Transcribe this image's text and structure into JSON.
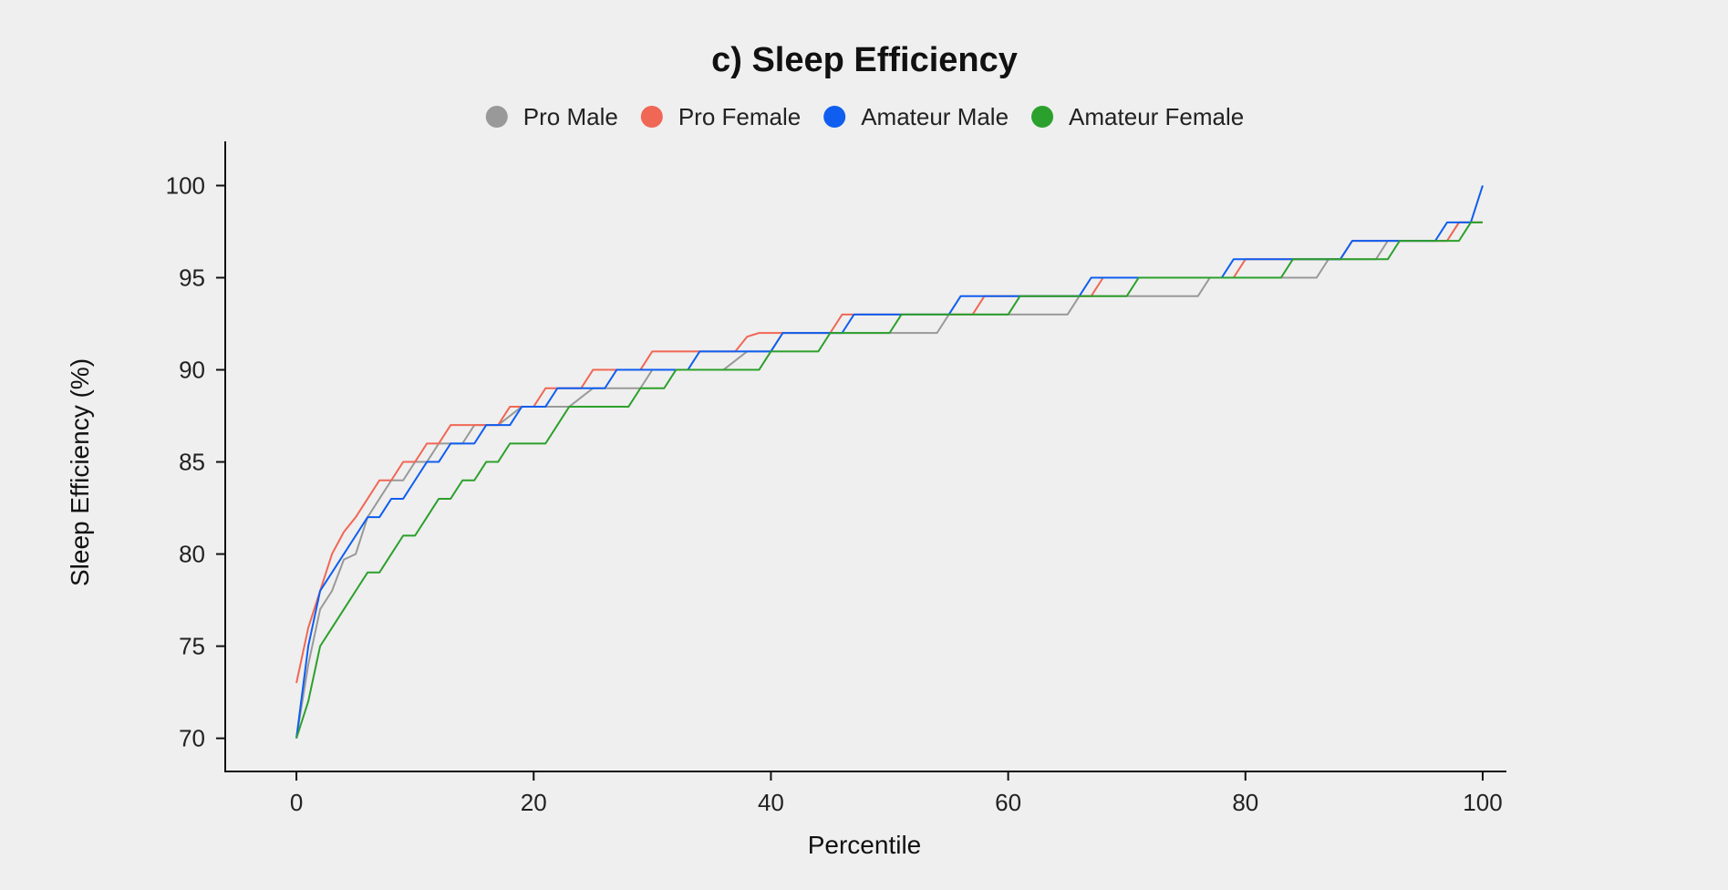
{
  "chart_data": {
    "type": "line",
    "title": "c) Sleep Efficiency",
    "xlabel": "Percentile",
    "ylabel": "Sleep Efficiency (%)",
    "xlim": [
      -6,
      102
    ],
    "ylim": [
      68.2,
      102.4
    ],
    "xticks": [
      0,
      20,
      40,
      60,
      80,
      100
    ],
    "yticks": [
      70,
      75,
      80,
      85,
      90,
      95,
      100
    ],
    "grid": false,
    "legend_position": "top",
    "series": [
      {
        "name": "Pro Male",
        "color": "#999999",
        "x": [
          0,
          1,
          2,
          3,
          4,
          5,
          6,
          7,
          8,
          9,
          10,
          11,
          12,
          13,
          14,
          15,
          16,
          17,
          18,
          19,
          20,
          21,
          22,
          23,
          24,
          25,
          26,
          27,
          28,
          29,
          30,
          31,
          32,
          33,
          34,
          35,
          36,
          37,
          38,
          39,
          40,
          41,
          42,
          43,
          44,
          45,
          46,
          47,
          48,
          49,
          50,
          51,
          52,
          53,
          54,
          55,
          56,
          57,
          58,
          59,
          60,
          61,
          62,
          63,
          64,
          65,
          66,
          67,
          68,
          69,
          70,
          71,
          72,
          73,
          74,
          75,
          76,
          77,
          78,
          79,
          80,
          81,
          82,
          83,
          84,
          85,
          86,
          87,
          88,
          89,
          90,
          91,
          92,
          93,
          94,
          95,
          96,
          97,
          98,
          99,
          100
        ],
        "y": [
          70,
          74,
          77,
          78,
          79.7,
          80,
          82,
          83,
          84,
          84,
          85,
          85,
          86,
          86,
          86,
          87,
          87,
          87,
          87.5,
          88,
          88,
          88,
          88,
          88,
          88.5,
          89,
          89,
          89,
          89,
          89,
          90,
          90,
          90,
          90,
          90,
          90,
          90,
          90.5,
          91,
          91,
          91,
          92,
          92,
          92,
          92,
          92,
          92,
          92,
          92,
          92,
          92,
          92,
          92,
          92,
          92,
          93,
          93,
          93,
          93,
          93,
          93,
          93,
          93,
          93,
          93,
          93,
          94,
          94,
          94,
          94,
          94,
          94,
          94,
          94,
          94,
          94,
          94,
          95,
          95,
          95,
          95,
          95,
          95,
          95,
          95,
          95,
          95,
          96,
          96,
          96,
          96,
          96,
          97,
          97,
          97,
          97,
          97,
          97,
          98,
          98,
          98
        ]
      },
      {
        "name": "Pro Female",
        "color": "#f06755",
        "x": [
          0,
          1,
          2,
          3,
          4,
          5,
          6,
          7,
          8,
          9,
          10,
          11,
          12,
          13,
          14,
          15,
          16,
          17,
          18,
          19,
          20,
          21,
          22,
          23,
          24,
          25,
          26,
          27,
          28,
          29,
          30,
          31,
          32,
          33,
          34,
          35,
          36,
          37,
          38,
          39,
          40,
          41,
          42,
          43,
          44,
          45,
          46,
          47,
          48,
          49,
          50,
          51,
          52,
          53,
          54,
          55,
          56,
          57,
          58,
          59,
          60,
          61,
          62,
          63,
          64,
          65,
          66,
          67,
          68,
          69,
          70,
          71,
          72,
          73,
          74,
          75,
          76,
          77,
          78,
          79,
          80,
          81,
          82,
          83,
          84,
          85,
          86,
          87,
          88,
          89,
          90,
          91,
          92,
          93,
          94,
          95,
          96,
          97,
          98,
          99,
          100
        ],
        "y": [
          73,
          76,
          78,
          80,
          81.2,
          82,
          83,
          84,
          84,
          85,
          85,
          86,
          86,
          87,
          87,
          87,
          87,
          87,
          88,
          88,
          88,
          89,
          89,
          89,
          89,
          90,
          90,
          90,
          90,
          90,
          91,
          91,
          91,
          91,
          91,
          91,
          91,
          91,
          91.8,
          92,
          92,
          92,
          92,
          92,
          92,
          92,
          93,
          93,
          93,
          93,
          93,
          93,
          93,
          93,
          93,
          93,
          93,
          93,
          94,
          94,
          94,
          94,
          94,
          94,
          94,
          94,
          94,
          94,
          95,
          95,
          95,
          95,
          95,
          95,
          95,
          95,
          95,
          95,
          95,
          95,
          96,
          96,
          96,
          96,
          96,
          96,
          96,
          96,
          96,
          97,
          97,
          97,
          97,
          97,
          97,
          97,
          97,
          97,
          98,
          98,
          98
        ]
      },
      {
        "name": "Amateur Male",
        "color": "#0f5ef0",
        "x": [
          0,
          1,
          2,
          3,
          4,
          5,
          6,
          7,
          8,
          9,
          10,
          11,
          12,
          13,
          14,
          15,
          16,
          17,
          18,
          19,
          20,
          21,
          22,
          23,
          24,
          25,
          26,
          27,
          28,
          29,
          30,
          31,
          32,
          33,
          34,
          35,
          36,
          37,
          38,
          39,
          40,
          41,
          42,
          43,
          44,
          45,
          46,
          47,
          48,
          49,
          50,
          51,
          52,
          53,
          54,
          55,
          56,
          57,
          58,
          59,
          60,
          61,
          62,
          63,
          64,
          65,
          66,
          67,
          68,
          69,
          70,
          71,
          72,
          73,
          74,
          75,
          76,
          77,
          78,
          79,
          80,
          81,
          82,
          83,
          84,
          85,
          86,
          87,
          88,
          89,
          90,
          91,
          92,
          93,
          94,
          95,
          96,
          97,
          98,
          99,
          100
        ],
        "y": [
          70,
          75,
          78,
          79,
          80,
          81,
          82,
          82,
          83,
          83,
          84,
          85,
          85,
          86,
          86,
          86,
          87,
          87,
          87,
          88,
          88,
          88,
          89,
          89,
          89,
          89,
          89,
          90,
          90,
          90,
          90,
          90,
          90,
          90,
          91,
          91,
          91,
          91,
          91,
          91,
          91,
          92,
          92,
          92,
          92,
          92,
          92,
          93,
          93,
          93,
          93,
          93,
          93,
          93,
          93,
          93,
          94,
          94,
          94,
          94,
          94,
          94,
          94,
          94,
          94,
          94,
          94,
          95,
          95,
          95,
          95,
          95,
          95,
          95,
          95,
          95,
          95,
          95,
          95,
          96,
          96,
          96,
          96,
          96,
          96,
          96,
          96,
          96,
          96,
          97,
          97,
          97,
          97,
          97,
          97,
          97,
          97,
          98,
          98,
          98,
          100
        ]
      },
      {
        "name": "Amateur Female",
        "color": "#2ca02c",
        "x": [
          0,
          1,
          2,
          3,
          4,
          5,
          6,
          7,
          8,
          9,
          10,
          11,
          12,
          13,
          14,
          15,
          16,
          17,
          18,
          19,
          20,
          21,
          22,
          23,
          24,
          25,
          26,
          27,
          28,
          29,
          30,
          31,
          32,
          33,
          34,
          35,
          36,
          37,
          38,
          39,
          40,
          41,
          42,
          43,
          44,
          45,
          46,
          47,
          48,
          49,
          50,
          51,
          52,
          53,
          54,
          55,
          56,
          57,
          58,
          59,
          60,
          61,
          62,
          63,
          64,
          65,
          66,
          67,
          68,
          69,
          70,
          71,
          72,
          73,
          74,
          75,
          76,
          77,
          78,
          79,
          80,
          81,
          82,
          83,
          84,
          85,
          86,
          87,
          88,
          89,
          90,
          91,
          92,
          93,
          94,
          95,
          96,
          97,
          98,
          99,
          100
        ],
        "y": [
          70,
          72,
          75,
          76,
          77,
          78,
          79,
          79,
          80,
          81,
          81,
          82,
          83,
          83,
          84,
          84,
          85,
          85,
          86,
          86,
          86,
          86,
          87,
          88,
          88,
          88,
          88,
          88,
          88,
          89,
          89,
          89,
          90,
          90,
          90,
          90,
          90,
          90,
          90,
          90,
          91,
          91,
          91,
          91,
          91,
          92,
          92,
          92,
          92,
          92,
          92,
          93,
          93,
          93,
          93,
          93,
          93,
          93,
          93,
          93,
          93,
          94,
          94,
          94,
          94,
          94,
          94,
          94,
          94,
          94,
          94,
          95,
          95,
          95,
          95,
          95,
          95,
          95,
          95,
          95,
          95,
          95,
          95,
          95,
          96,
          96,
          96,
          96,
          96,
          96,
          96,
          96,
          96,
          97,
          97,
          97,
          97,
          97,
          97,
          98,
          98
        ]
      }
    ]
  }
}
